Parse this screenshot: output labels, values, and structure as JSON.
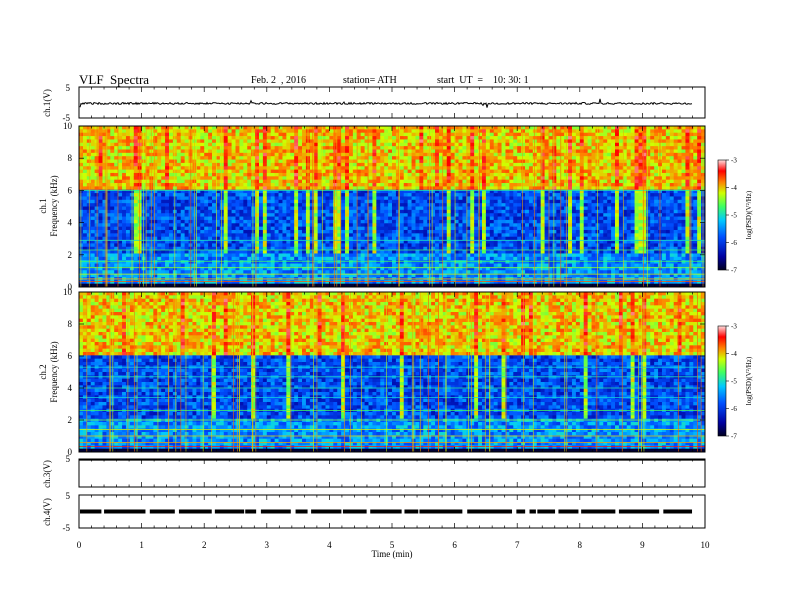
{
  "header": {
    "title": "VLF  Spectra",
    "date": "Feb. 2  , 2016",
    "station": "station= ATH",
    "start": "start  UT  =    10: 30: 1"
  },
  "colors": {
    "axis": "#000000",
    "background": "#ffffff",
    "colormap": [
      "#000020",
      "#0000a0",
      "#0050ff",
      "#00c8ff",
      "#40ff60",
      "#d0ff00",
      "#ff8000",
      "#ff0000",
      "#ffe0e0"
    ]
  },
  "chart_data": [
    {
      "type": "line",
      "ylabel": "ch.1(V)",
      "ylim": [
        -5,
        5
      ],
      "yticks": [
        "5",
        "-5"
      ],
      "xlim": [
        0,
        10
      ],
      "description_level": -0.3
    },
    {
      "type": "heatmap",
      "ylabel_top": "ch.1",
      "ylabel": "Frequency  (kHz)",
      "ylim": [
        0,
        10
      ],
      "yticks": [
        "0",
        "2",
        "4",
        "6",
        "8",
        "10"
      ],
      "xlim": [
        0,
        10
      ],
      "colorbar": {
        "label": "log(PSD)(V²/Hz)",
        "ticks": [
          "-3",
          "-4",
          "-5",
          "-6",
          "-7"
        ],
        "range": [
          -7,
          -3
        ]
      }
    },
    {
      "type": "heatmap",
      "ylabel_top": "ch.2",
      "ylabel": "Frequency  (kHz)",
      "ylim": [
        0,
        10
      ],
      "yticks": [
        "0",
        "2",
        "4",
        "6",
        "8",
        "10"
      ],
      "xlim": [
        0,
        10
      ],
      "colorbar": {
        "label": "log(PSD)(V²/Hz)",
        "ticks": [
          "-3",
          "-4",
          "-5",
          "-6",
          "-7"
        ],
        "range": [
          -7,
          -3
        ]
      }
    },
    {
      "type": "line",
      "ylabel": "ch.3(V)",
      "ylim": [
        -5,
        5
      ],
      "yticks": [
        "5"
      ],
      "xlim": [
        0,
        10
      ],
      "level": 5
    },
    {
      "type": "line",
      "ylabel": "ch.4(V)",
      "ylim": [
        -5,
        5
      ],
      "yticks": [
        "5",
        "-5"
      ],
      "xlim": [
        0,
        10
      ],
      "level": 0,
      "xlabel": "Time  (min)",
      "xticks": [
        "0",
        "1",
        "2",
        "3",
        "4",
        "5",
        "6",
        "7",
        "8",
        "9",
        "10"
      ]
    }
  ]
}
